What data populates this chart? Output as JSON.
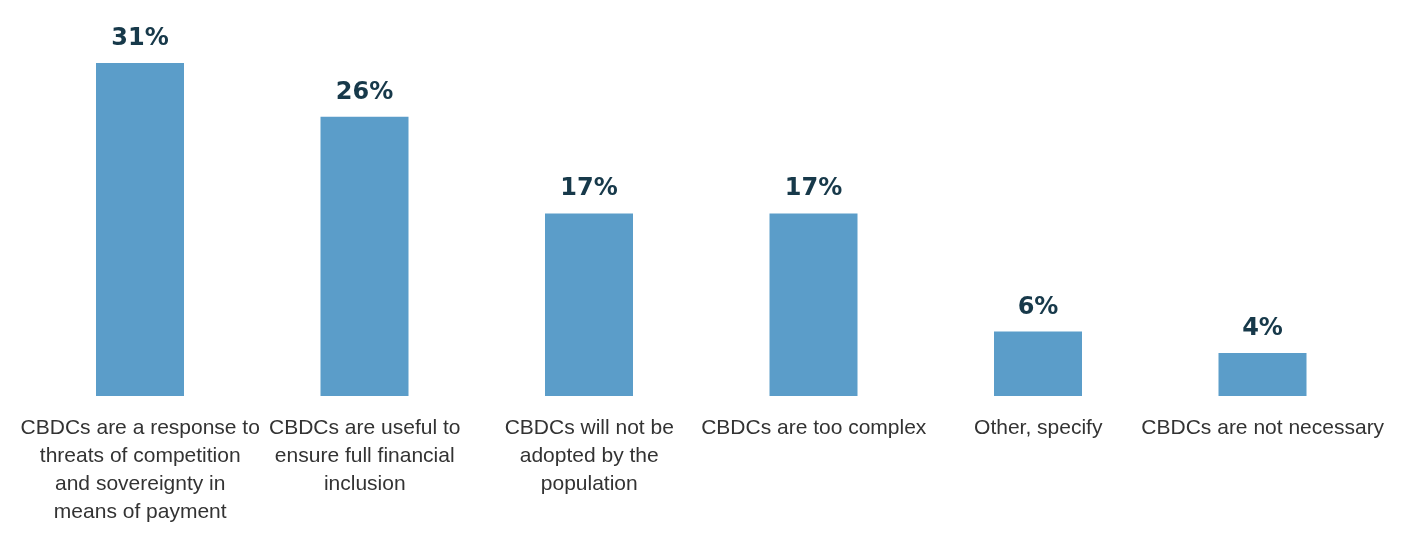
{
  "chart_data": {
    "type": "bar",
    "categories": [
      "CBDCs are a response to threats of competition and sovereignty in means of payment",
      "CBDCs are useful to ensure full financial inclusion",
      "CBDCs will not be adopted by the population",
      "CBDCs are too complex",
      "Other, specify",
      "CBDCs are not necessary"
    ],
    "values": [
      31,
      26,
      17,
      17,
      6,
      4
    ],
    "value_labels": [
      "31%",
      "26%",
      "17%",
      "17%",
      "6%",
      "4%"
    ],
    "color": "#5b9dc9",
    "grid": false,
    "legend": false
  }
}
